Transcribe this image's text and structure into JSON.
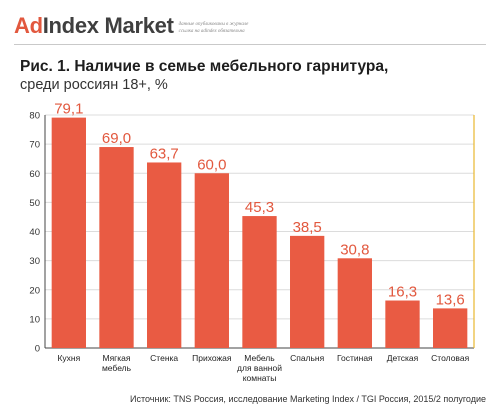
{
  "logo": {
    "brand_ad": "Ad",
    "brand_rest": "Index Market",
    "tagline_1": "данные опубликованы в журнале",
    "tagline_2": "ссылка на adindex обязательна"
  },
  "header": {
    "title": "Рис. 1. Наличие в семье мебельного гарнитура,",
    "subtitle": "среди россиян 18+, %"
  },
  "source": "Источник: TNS Россия, исследование Marketing Index / TGI Россия, 2015/2 полугодие",
  "colors": {
    "bar": "#e95b43",
    "value_label": "#e2583e",
    "axis_highlight": "#e8b830",
    "grid": "#dcdcdc"
  },
  "chart_data": {
    "type": "bar",
    "title": "",
    "xlabel": "",
    "ylabel": "",
    "ylim": [
      0,
      80
    ],
    "yticks": [
      0,
      10,
      20,
      30,
      40,
      50,
      60,
      70,
      80
    ],
    "grid": true,
    "categories": [
      [
        "Кухня"
      ],
      [
        "Мягкая",
        "мебель"
      ],
      [
        "Стенка"
      ],
      [
        "Прихожая"
      ],
      [
        "Мебель",
        "для ванной",
        "комнаты"
      ],
      [
        "Спальня"
      ],
      [
        "Гостиная"
      ],
      [
        "Детская"
      ],
      [
        "Столовая"
      ]
    ],
    "values": [
      79.1,
      69.0,
      63.7,
      60.0,
      45.3,
      38.5,
      30.8,
      16.3,
      13.6
    ],
    "value_labels": [
      "79,1",
      "69,0",
      "63,7",
      "60,0",
      "45,3",
      "38,5",
      "30,8",
      "16,3",
      "13,6"
    ]
  }
}
